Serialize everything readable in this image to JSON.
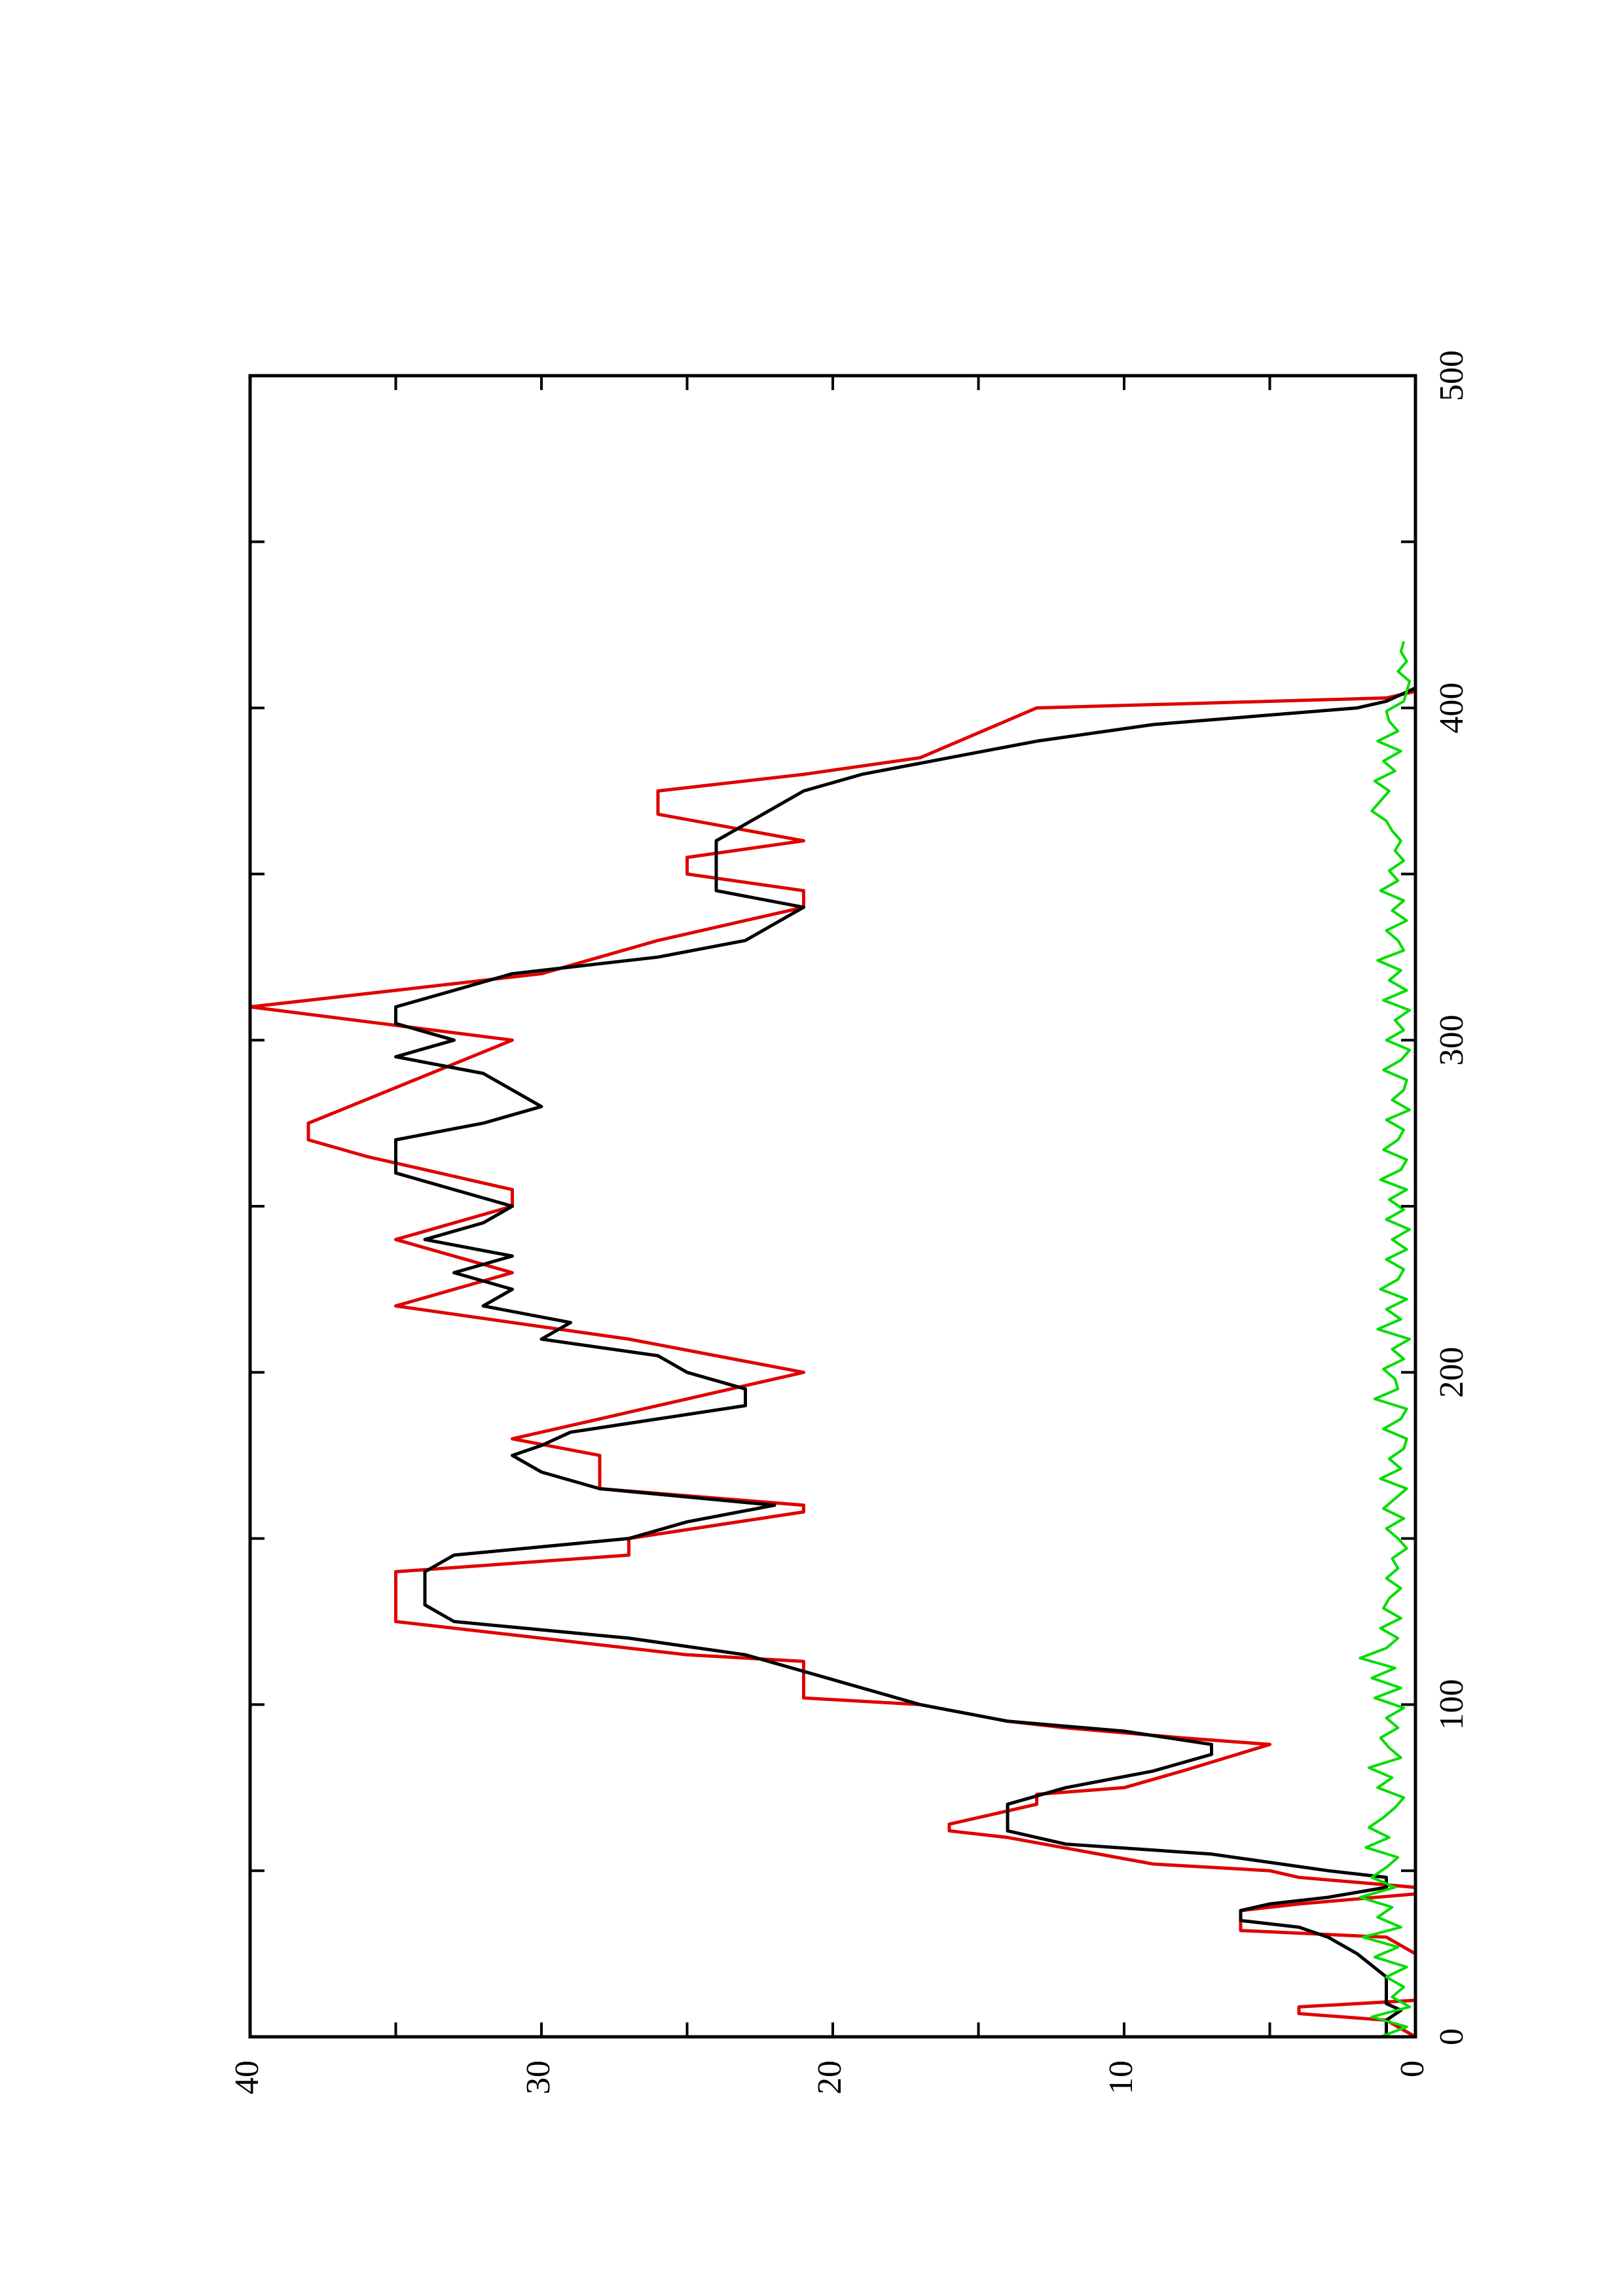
{
  "chart_data": {
    "type": "line",
    "orientation": "rotated-90-counterclockwise",
    "title": "",
    "xlabel": "",
    "ylabel": "",
    "xlim": [
      0,
      500
    ],
    "ylim": [
      0,
      40
    ],
    "grid": false,
    "legend": "none",
    "x_ticks": [
      0,
      100,
      200,
      300,
      400,
      500
    ],
    "x_tick_labels": [
      "0",
      "100",
      "200",
      "300",
      "400",
      "500"
    ],
    "y_ticks": [
      0,
      10,
      20,
      30,
      40
    ],
    "y_tick_labels": [
      "0",
      "10",
      "20",
      "30",
      "40"
    ],
    "series": [
      {
        "color": "#e00000",
        "style": "step",
        "x": [
          0,
          5,
          7,
          9,
          11,
          25,
          30,
          32,
          38,
          40,
          43,
          45,
          48,
          50,
          52,
          60,
          62,
          64,
          70,
          73,
          75,
          80,
          88,
          90,
          93,
          95,
          100,
          102,
          105,
          110,
          113,
          115,
          125,
          130,
          140,
          145,
          150,
          158,
          160,
          165,
          175,
          180,
          200,
          210,
          220,
          230,
          240,
          250,
          255,
          265,
          270,
          275,
          300,
          310,
          315,
          320,
          330,
          340,
          345,
          350,
          355,
          360,
          368,
          375,
          380,
          385,
          400,
          403,
          405,
          410
        ],
        "y": [
          0,
          1,
          4,
          4,
          0,
          0,
          1,
          6,
          6,
          4,
          0,
          0,
          4,
          5,
          9,
          14,
          16,
          16,
          13,
          13,
          10,
          8,
          5,
          8,
          12,
          14,
          17,
          21,
          21,
          21,
          21,
          25,
          35,
          35,
          35,
          27,
          27,
          21,
          21,
          28,
          28,
          31,
          21,
          27,
          35,
          31,
          35,
          31,
          31,
          36,
          38,
          38,
          31,
          40,
          35,
          30,
          26,
          21,
          21,
          25,
          25,
          21,
          26,
          26,
          21,
          17,
          13,
          1,
          0,
          0
        ]
      },
      {
        "color": "#000000",
        "style": "line",
        "x": [
          0,
          5,
          8,
          10,
          12,
          18,
          25,
          30,
          33,
          35,
          38,
          40,
          42,
          45,
          48,
          50,
          55,
          58,
          62,
          66,
          70,
          75,
          80,
          85,
          88,
          92,
          95,
          100,
          105,
          110,
          115,
          120,
          125,
          130,
          140,
          145,
          150,
          155,
          160,
          165,
          170,
          175,
          178,
          182,
          190,
          195,
          200,
          205,
          210,
          215,
          220,
          225,
          230,
          235,
          240,
          245,
          250,
          255,
          260,
          265,
          270,
          275,
          280,
          285,
          290,
          295,
          300,
          305,
          310,
          315,
          320,
          325,
          330,
          335,
          340,
          345,
          350,
          355,
          360,
          365,
          370,
          375,
          380,
          385,
          390,
          395,
          400,
          402,
          404,
          406,
          410
        ],
        "y": [
          1,
          1,
          0.5,
          1,
          1,
          1,
          2,
          3,
          4,
          6,
          6,
          5,
          3,
          1,
          1,
          3,
          7,
          12,
          14,
          14,
          14,
          12,
          9,
          7,
          7,
          10,
          14,
          17,
          19,
          21,
          23,
          27,
          33,
          34,
          34,
          33,
          27,
          25,
          22,
          28,
          30,
          31,
          30,
          29,
          23,
          23,
          25,
          26,
          30,
          29,
          32,
          31,
          33,
          31,
          34,
          32,
          31,
          33,
          35,
          35,
          35,
          32,
          30,
          31,
          32,
          35,
          33,
          35,
          35,
          33,
          31,
          26,
          23,
          22,
          21,
          24,
          24,
          24,
          24,
          23,
          22,
          21,
          19,
          16,
          13,
          9,
          2,
          1,
          0.5,
          0,
          0
        ]
      },
      {
        "color": "#00dd00",
        "style": "line",
        "x": [
          0,
          3,
          6,
          9,
          12,
          15,
          18,
          21,
          24,
          27,
          30,
          33,
          36,
          39,
          42,
          45,
          48,
          51,
          54,
          57,
          60,
          63,
          66,
          69,
          72,
          75,
          78,
          81,
          84,
          87,
          90,
          93,
          96,
          99,
          102,
          105,
          108,
          111,
          114,
          117,
          120,
          123,
          126,
          129,
          132,
          135,
          138,
          141,
          144,
          147,
          150,
          153,
          156,
          159,
          162,
          165,
          168,
          171,
          174,
          177,
          180,
          183,
          186,
          189,
          192,
          195,
          198,
          201,
          204,
          207,
          210,
          213,
          216,
          219,
          222,
          225,
          228,
          231,
          234,
          237,
          240,
          243,
          246,
          249,
          252,
          255,
          258,
          261,
          264,
          267,
          270,
          273,
          276,
          279,
          282,
          285,
          288,
          291,
          294,
          297,
          300,
          303,
          306,
          309,
          312,
          315,
          318,
          321,
          324,
          327,
          330,
          333,
          336,
          339,
          342,
          345,
          348,
          351,
          354,
          357,
          360,
          363,
          366,
          369,
          372,
          375,
          378,
          381,
          384,
          387,
          390,
          393,
          396,
          399,
          402,
          405,
          408,
          411,
          414,
          417,
          420
        ],
        "y": [
          1.2,
          0.3,
          1.5,
          0.2,
          0.8,
          0.4,
          1.0,
          0.3,
          1.4,
          0.6,
          1.8,
          0.5,
          1.3,
          0.8,
          1.9,
          0.7,
          1.5,
          1.0,
          0.6,
          1.7,
          0.9,
          1.6,
          1.1,
          0.7,
          0.4,
          1.3,
          0.8,
          1.6,
          0.5,
          0.9,
          1.2,
          0.6,
          1.0,
          0.4,
          1.4,
          0.5,
          1.5,
          0.7,
          1.9,
          1.0,
          0.6,
          1.2,
          0.5,
          1.1,
          0.9,
          0.5,
          1.0,
          0.6,
          0.8,
          0.3,
          0.6,
          1.0,
          0.4,
          1.1,
          0.7,
          0.3,
          1.2,
          0.5,
          0.9,
          0.4,
          0.3,
          1.1,
          0.5,
          0.3,
          1.4,
          0.6,
          0.7,
          1.1,
          0.4,
          0.8,
          0.2,
          1.3,
          0.5,
          1.0,
          0.3,
          1.2,
          0.6,
          0.4,
          1.0,
          0.3,
          0.8,
          0.2,
          1.0,
          0.4,
          0.9,
          0.3,
          1.2,
          0.5,
          0.3,
          1.1,
          0.6,
          0.4,
          1.0,
          0.2,
          0.8,
          0.4,
          0.3,
          1.1,
          0.5,
          0.2,
          1.0,
          0.4,
          0.7,
          0.2,
          1.1,
          0.3,
          0.9,
          0.5,
          1.3,
          0.4,
          0.6,
          1.0,
          0.3,
          0.8,
          0.4,
          1.2,
          0.6,
          0.9,
          0.4,
          0.7,
          0.5,
          0.8,
          1.0,
          1.5,
          1.2,
          0.9,
          1.4,
          0.7,
          1.1,
          0.5,
          1.3,
          0.6,
          0.9,
          1.0,
          0.4,
          0.3,
          0.2,
          0.6,
          0.3,
          0.5,
          0.4
        ]
      }
    ]
  }
}
